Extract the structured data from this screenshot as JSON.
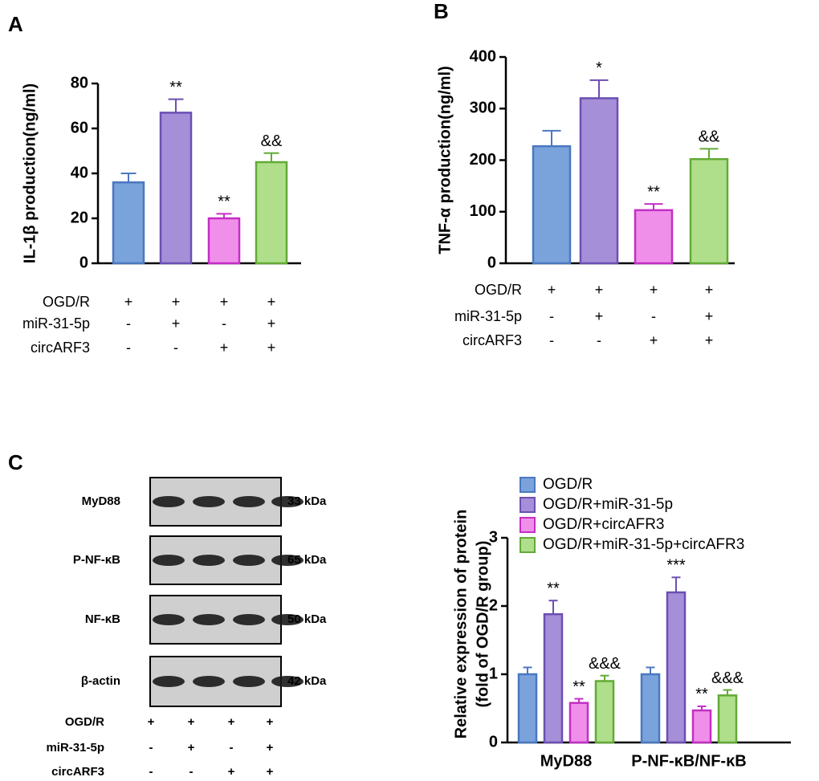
{
  "chart_data": [
    {
      "type": "bar",
      "panel": "A",
      "ylabel": "IL-1β production(ng/ml)",
      "values": [
        36,
        67,
        20,
        45
      ],
      "errors": [
        4,
        6,
        2,
        4
      ],
      "annotations": [
        null,
        "**",
        "**",
        "&&"
      ],
      "colors": [
        "#7aa3dc",
        "#a58fd8",
        "#f08fea",
        "#afdf8a"
      ],
      "edgecolors": [
        "#4a78c0",
        "#6c4fb2",
        "#c42ec4",
        "#62aa36"
      ],
      "ylim": [
        0,
        80
      ],
      "yticks": [
        0,
        20,
        40,
        60,
        80
      ],
      "conditions": [
        {
          "name": "OGD/R",
          "signs": [
            "+",
            "+",
            "+",
            "+"
          ]
        },
        {
          "name": "miR-31-5p",
          "signs": [
            "-",
            "+",
            "-",
            "+"
          ]
        },
        {
          "name": "circARF3",
          "signs": [
            "-",
            "-",
            "+",
            "+"
          ]
        }
      ]
    },
    {
      "type": "bar",
      "panel": "B",
      "ylabel": "TNF-α production(ng/ml)",
      "values": [
        227,
        320,
        103,
        202
      ],
      "errors": [
        30,
        35,
        12,
        20
      ],
      "annotations": [
        null,
        "*",
        "**",
        "&&"
      ],
      "colors": [
        "#7aa3dc",
        "#a58fd8",
        "#f08fea",
        "#afdf8a"
      ],
      "edgecolors": [
        "#4a78c0",
        "#6c4fb2",
        "#c42ec4",
        "#62aa36"
      ],
      "ylim": [
        0,
        400
      ],
      "yticks": [
        0,
        100,
        200,
        300,
        400
      ],
      "conditions": [
        {
          "name": "OGD/R",
          "signs": [
            "+",
            "+",
            "+",
            "+"
          ]
        },
        {
          "name": "miR-31-5p",
          "signs": [
            "-",
            "+",
            "-",
            "+"
          ]
        },
        {
          "name": "circARF3",
          "signs": [
            "-",
            "-",
            "+",
            "+"
          ]
        }
      ]
    },
    {
      "type": "grouped_bar",
      "ylabel": [
        "Relative expression of protein",
        "(fold of OGD/R group)"
      ],
      "categories": [
        "MyD88",
        "P-NF-κB/NF-κB"
      ],
      "series": [
        {
          "name": "OGD/R",
          "color": "#7aa3dc",
          "edgecolor": "#4a78c0",
          "values": [
            1,
            1
          ],
          "errors": [
            0.1,
            0.1
          ],
          "annotations": [
            null,
            null
          ]
        },
        {
          "name": "OGD/R+miR-31-5p",
          "color": "#a58fd8",
          "edgecolor": "#6c4fb2",
          "values": [
            1.88,
            2.2
          ],
          "errors": [
            0.2,
            0.22
          ],
          "annotations": [
            "**",
            "***"
          ]
        },
        {
          "name": "OGD/R+circAFR3",
          "color": "#f08fea",
          "edgecolor": "#c42ec4",
          "values": [
            0.58,
            0.47
          ],
          "errors": [
            0.06,
            0.06
          ],
          "annotations": [
            "**",
            "**"
          ]
        },
        {
          "name": "OGD/R+miR-31-5p+circAFR3",
          "color": "#afdf8a",
          "edgecolor": "#62aa36",
          "values": [
            0.9,
            0.69
          ],
          "errors": [
            0.08,
            0.08
          ],
          "annotations": [
            "&&&",
            "&&&"
          ]
        }
      ],
      "ylim": [
        0,
        3
      ],
      "yticks": [
        0,
        1,
        2,
        3
      ]
    }
  ],
  "blot": {
    "panel": "C",
    "rows": [
      {
        "name": "MyD88",
        "size": "33 kDa"
      },
      {
        "name": "P-NF-κB",
        "size": "65 kDa"
      },
      {
        "name": "NF-κB",
        "size": "50 kDa"
      },
      {
        "name": "β-actin",
        "size": "42 kDa"
      }
    ],
    "conditions": [
      {
        "name": "OGD/R",
        "signs": [
          "+",
          "+",
          "+",
          "+"
        ]
      },
      {
        "name": "miR-31-5p",
        "signs": [
          "-",
          "+",
          "-",
          "+"
        ]
      },
      {
        "name": "circARF3",
        "signs": [
          "-",
          "-",
          "+",
          "+"
        ]
      }
    ]
  }
}
